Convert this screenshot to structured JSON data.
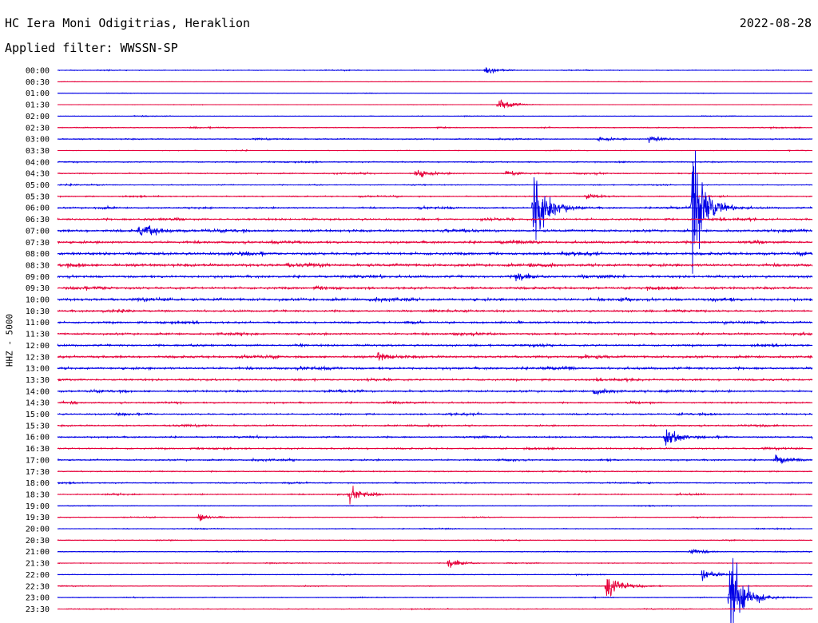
{
  "header": {
    "title": "HC Iera Moni Odigitrias, Heraklion",
    "date": "2022-08-28",
    "filter": "Applied filter: WWSSN-SP"
  },
  "chart_data": {
    "type": "line",
    "title": "HC Iera Moni Odigitrias, Heraklion",
    "subtitle": "Applied filter: WWSSN-SP",
    "ylabel": "HHZ - 5000",
    "row_labels": [
      "00:00",
      "00:30",
      "01:00",
      "01:30",
      "02:00",
      "02:30",
      "03:00",
      "03:30",
      "04:00",
      "04:30",
      "05:00",
      "05:30",
      "06:00",
      "06:30",
      "07:00",
      "07:30",
      "08:00",
      "08:30",
      "09:00",
      "09:30",
      "10:00",
      "10:30",
      "11:00",
      "11:30",
      "12:00",
      "12:30",
      "13:00",
      "13:30",
      "14:00",
      "14:30",
      "15:00",
      "15:30",
      "16:00",
      "16:30",
      "17:00",
      "17:30",
      "18:00",
      "18:30",
      "19:00",
      "19:30",
      "20:00",
      "20:30",
      "21:00",
      "21:30",
      "22:00",
      "22:30",
      "23:00",
      "23:30"
    ],
    "colors": [
      "#0000e6",
      "#e6003a"
    ],
    "noise_levels": [
      1,
      0.5,
      0.6,
      0.5,
      0.8,
      1.2,
      1.5,
      0.8,
      1.5,
      1.5,
      1.2,
      1.5,
      2,
      2.5,
      3,
      3,
      3.5,
      3.5,
      3,
      3,
      3.5,
      2.5,
      2.5,
      2.5,
      2.5,
      3,
      3,
      2.5,
      2.5,
      2,
      2,
      2,
      2,
      2,
      2,
      1.5,
      1.5,
      1.5,
      1,
      1,
      1,
      1,
      1,
      1,
      1,
      1,
      1,
      1
    ],
    "events": [
      {
        "row": 0,
        "minute": 17,
        "amp": 6
      },
      {
        "row": 3,
        "minute": 17.5,
        "amp": 12
      },
      {
        "row": 6,
        "minute": 21.5,
        "amp": 4
      },
      {
        "row": 6,
        "minute": 23.5,
        "amp": 8
      },
      {
        "row": 9,
        "minute": 14.2,
        "amp": 10
      },
      {
        "row": 9,
        "minute": 17.8,
        "amp": 6
      },
      {
        "row": 11,
        "minute": 21,
        "amp": 6
      },
      {
        "row": 12,
        "minute": 18.9,
        "amp": 90
      },
      {
        "row": 12,
        "minute": 25.2,
        "amp": 140
      },
      {
        "row": 14,
        "minute": 3.2,
        "amp": 8
      },
      {
        "row": 14,
        "minute": 3.5,
        "amp": 8
      },
      {
        "row": 18,
        "minute": 18.2,
        "amp": 10
      },
      {
        "row": 25,
        "minute": 12.7,
        "amp": 8
      },
      {
        "row": 28,
        "minute": 21.3,
        "amp": 8
      },
      {
        "row": 32,
        "minute": 24.1,
        "amp": 22
      },
      {
        "row": 34,
        "minute": 28.5,
        "amp": 10
      },
      {
        "row": 37,
        "minute": 11.6,
        "amp": 14
      },
      {
        "row": 39,
        "minute": 5.6,
        "amp": 8
      },
      {
        "row": 42,
        "minute": 25.1,
        "amp": 6
      },
      {
        "row": 43,
        "minute": 15.5,
        "amp": 10
      },
      {
        "row": 44,
        "minute": 25.6,
        "amp": 10
      },
      {
        "row": 45,
        "minute": 21.8,
        "amp": 28
      },
      {
        "row": 46,
        "minute": 26.7,
        "amp": 110
      }
    ]
  }
}
